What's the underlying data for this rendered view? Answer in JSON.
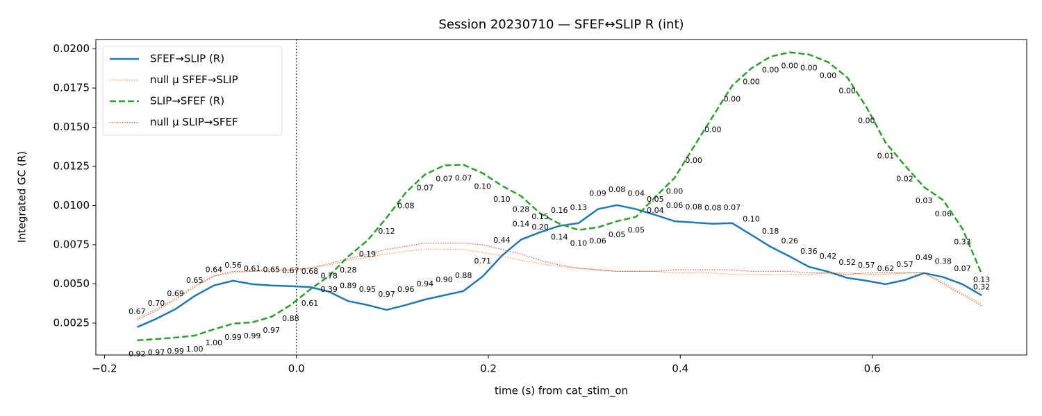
{
  "chart_data": {
    "type": "line",
    "title": "Session 20230710 — SFEF↔SLIP R (int)",
    "xlabel": "time (s) from cat_stim_on",
    "ylabel": "Integrated GC (R)",
    "x": [
      -0.166,
      -0.146,
      -0.126,
      -0.106,
      -0.086,
      -0.066,
      -0.046,
      -0.026,
      -0.006,
      0.014,
      0.034,
      0.054,
      0.074,
      0.094,
      0.114,
      0.134,
      0.154,
      0.174,
      0.194,
      0.214,
      0.234,
      0.254,
      0.274,
      0.294,
      0.314,
      0.334,
      0.354,
      0.374,
      0.394,
      0.414,
      0.434,
      0.454,
      0.474,
      0.494,
      0.514,
      0.534,
      0.554,
      0.574,
      0.594,
      0.614,
      0.634,
      0.654,
      0.674,
      0.694,
      0.714
    ],
    "series": [
      {
        "name": "SFEF→SLIP (R)",
        "color": "#1f77b4",
        "style": "solid",
        "width": 2.5,
        "values": [
          0.00224,
          0.00277,
          0.00339,
          0.00423,
          0.0049,
          0.0052,
          0.00498,
          0.0049,
          0.00485,
          0.0048,
          0.0045,
          0.0039,
          0.00365,
          0.00334,
          0.00365,
          0.004,
          0.00427,
          0.00454,
          0.00547,
          0.0068,
          0.00782,
          0.0083,
          0.0087,
          0.00888,
          0.00977,
          0.01003,
          0.00977,
          0.0094,
          0.009,
          0.00892,
          0.00884,
          0.00888,
          0.00813,
          0.00737,
          0.00675,
          0.00609,
          0.00578,
          0.00538,
          0.0052,
          0.00498,
          0.00525,
          0.00569,
          0.00543,
          0.00498,
          0.00427
        ],
        "point_labels": [
          "0.67",
          "0.70",
          "0.69",
          "0.65",
          "0.64",
          "0.56",
          "0.61",
          "0.65",
          "0.67",
          "0.68",
          "0.78",
          "0.89",
          "0.95",
          "0.97",
          "0.96",
          "0.94",
          "0.90",
          "0.88",
          "0.71",
          "0.44",
          "0.14",
          "0.15",
          "0.16",
          "0.13",
          "0.09",
          "0.08",
          "0.04",
          "0.05",
          "0.06",
          "0.08",
          "0.08",
          "0.07",
          "0.10",
          "0.18",
          "0.26",
          "0.36",
          "0.42",
          "0.52",
          "0.57",
          "0.62",
          "0.57",
          "0.49",
          "0.38",
          "0.07",
          "0.13"
        ]
      },
      {
        "name": "null μ SFEF→SLIP",
        "color": "#ff7f0e",
        "style": "dotted",
        "width": 1.2,
        "values": [
          0.0028,
          0.0034,
          0.0041,
          0.0049,
          0.0055,
          0.0057,
          0.0058,
          0.0058,
          0.0059,
          0.006,
          0.0062,
          0.0065,
          0.0067,
          0.0069,
          0.0071,
          0.0072,
          0.0072,
          0.0072,
          0.007,
          0.0068,
          0.0065,
          0.0063,
          0.0061,
          0.006,
          0.0059,
          0.0058,
          0.0058,
          0.0058,
          0.0057,
          0.0057,
          0.0057,
          0.0056,
          0.0056,
          0.0056,
          0.0056,
          0.0056,
          0.0057,
          0.0057,
          0.0056,
          0.0056,
          0.0057,
          0.0057,
          0.0051,
          0.0044,
          0.0037
        ]
      },
      {
        "name": "SLIP→SFEF (R)",
        "color": "#2ca02c",
        "style": "dashed",
        "width": 2.5,
        "values": [
          0.0014,
          0.00148,
          0.00157,
          0.0017,
          0.0021,
          0.00246,
          0.00255,
          0.0029,
          0.00365,
          0.00463,
          0.00551,
          0.00675,
          0.00777,
          0.00923,
          0.01083,
          0.01198,
          0.01256,
          0.0126,
          0.01207,
          0.01127,
          0.01061,
          0.0095,
          0.00884,
          0.00844,
          0.00861,
          0.009,
          0.00928,
          0.01056,
          0.01176,
          0.01375,
          0.0157,
          0.01765,
          0.01876,
          0.01951,
          0.01978,
          0.01965,
          0.01916,
          0.01818,
          0.01628,
          0.01402,
          0.01256,
          0.01118,
          0.01034,
          0.00853,
          0.00565
        ],
        "point_labels": [
          "0.92",
          "0.97",
          "0.99",
          "1.00",
          "1.00",
          "0.99",
          "0.99",
          "0.97",
          "0.88",
          "0.61",
          "0.39",
          "0.28",
          "0.19",
          "0.12",
          "0.08",
          "0.07",
          "0.07",
          "0.07",
          "0.10",
          "0.10",
          "0.28",
          "0.20",
          "0.14",
          "0.10",
          "0.06",
          "0.05",
          "0.05",
          "0.04",
          "0.00",
          "0.00",
          "0.00",
          "0.00",
          "0.00",
          "0.00",
          "0.00",
          "0.00",
          "0.00",
          "0.00",
          "0.00",
          "0.01",
          "0.02",
          "0.03",
          "0.06",
          "0.33",
          "0.32"
        ]
      },
      {
        "name": "null μ SLIP→SFEF",
        "color": "#d62728",
        "style": "dotted",
        "width": 1.2,
        "values": [
          0.0027,
          0.0033,
          0.004,
          0.0048,
          0.0055,
          0.0058,
          0.0058,
          0.0059,
          0.0059,
          0.006,
          0.0063,
          0.0066,
          0.0069,
          0.0072,
          0.0074,
          0.0076,
          0.0076,
          0.0076,
          0.0075,
          0.0072,
          0.0069,
          0.0065,
          0.0062,
          0.006,
          0.0059,
          0.0058,
          0.0058,
          0.0058,
          0.0059,
          0.0059,
          0.0059,
          0.0059,
          0.0058,
          0.0058,
          0.0058,
          0.0057,
          0.0057,
          0.0056,
          0.0057,
          0.0057,
          0.0057,
          0.0057,
          0.005,
          0.0043,
          0.0036
        ]
      }
    ],
    "vline_x": 0,
    "xlim": [
      -0.209,
      0.761
    ],
    "ylim": [
      0.00046,
      0.0206
    ],
    "xticks": [
      {
        "value": -0.2,
        "label": "−0.2"
      },
      {
        "value": 0,
        "label": "0.0"
      },
      {
        "value": 0.2,
        "label": "0.2"
      },
      {
        "value": 0.4,
        "label": "0.4"
      },
      {
        "value": 0.6,
        "label": "0.6"
      }
    ],
    "yticks": [
      0.0025,
      {
        "value": 0.005,
        "label": "0.0050"
      },
      0.0075,
      {
        "value": 0.01,
        "label": "0.0100"
      },
      0.0125,
      {
        "value": 0.015,
        "label": "0.0150"
      },
      0.0175,
      {
        "value": 0.02,
        "label": "0.0200"
      }
    ],
    "legend": "upper left"
  }
}
